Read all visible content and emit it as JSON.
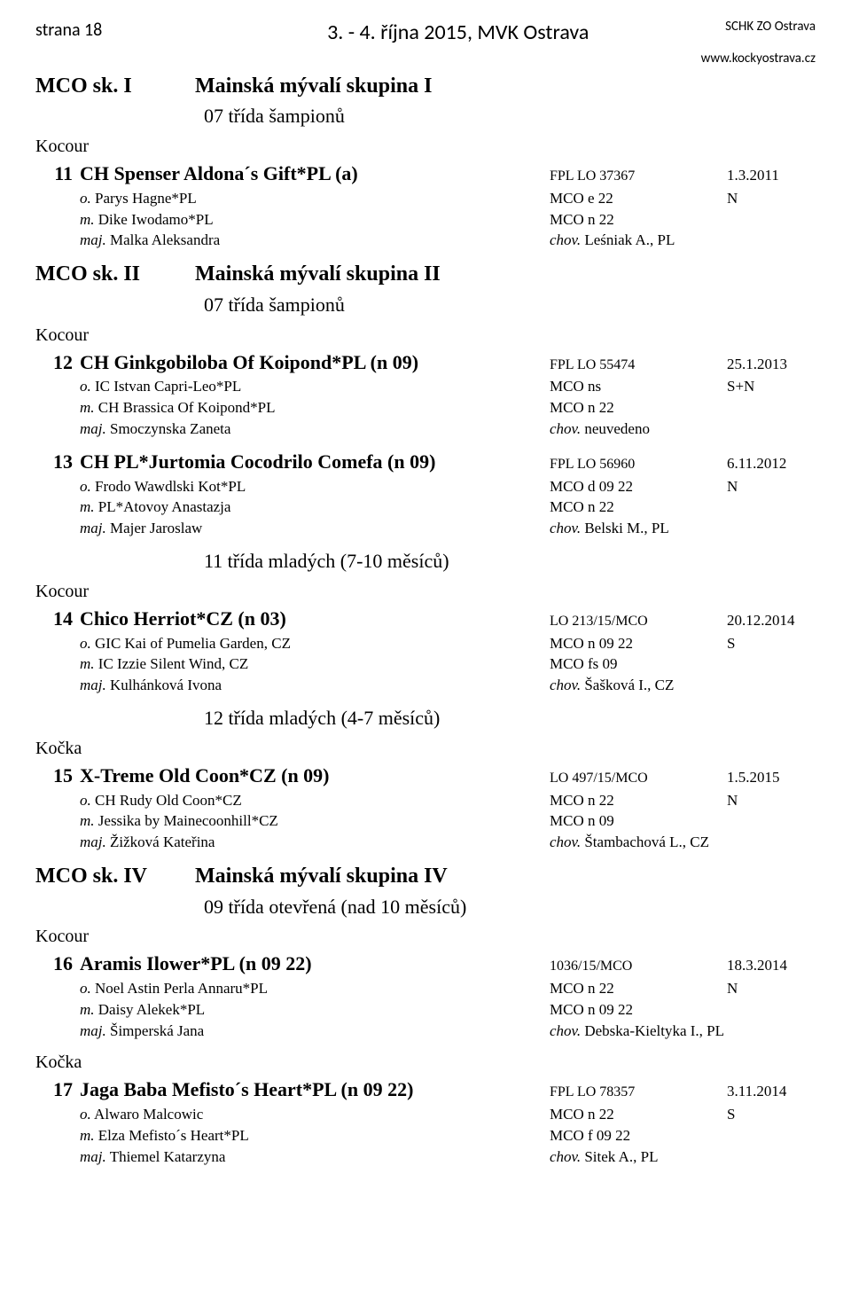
{
  "header": {
    "event_title": "3. - 4. října 2015, MVK Ostrava",
    "page_label": "strana 18",
    "org_name": "SCHK ZO Ostrava",
    "website": "www.kockyostrava.cz"
  },
  "groups": [
    {
      "code": "MCO sk. I",
      "name": "Mainská mývalí skupina I",
      "sections": [
        {
          "class_title": "07 třída šampionů",
          "sex": "Kocour",
          "entries": [
            {
              "num": "11",
              "name": "CH Spenser Aldona´s Gift*PL (a)",
              "reg": "FPL LO 37367",
              "date": "1.3.2011",
              "details": [
                {
                  "prefix": "o.",
                  "text": " Parys Hagne*PL",
                  "code": "MCO e 22",
                  "result": "N"
                },
                {
                  "prefix": "m.",
                  "text": " Dike Iwodamo*PL",
                  "code": "MCO n 22",
                  "result": ""
                },
                {
                  "prefix": "maj.",
                  "text": " Malka Aleksandra",
                  "code_prefix": "chov.",
                  "code": " Leśniak A., PL",
                  "result": ""
                }
              ]
            }
          ]
        }
      ]
    },
    {
      "code": "MCO sk. II",
      "name": "Mainská mývalí skupina II",
      "sections": [
        {
          "class_title": "07 třída šampionů",
          "sex": "Kocour",
          "entries": [
            {
              "num": "12",
              "name": "CH Ginkgobiloba Of Koipond*PL (n 09)",
              "reg": "FPL LO 55474",
              "date": "25.1.2013",
              "details": [
                {
                  "prefix": "o.",
                  "text": " IC Istvan Capri-Leo*PL",
                  "code": "MCO ns",
                  "result": "S+N"
                },
                {
                  "prefix": "m.",
                  "text": " CH Brassica Of Koipond*PL",
                  "code": "MCO n 22",
                  "result": ""
                },
                {
                  "prefix": "maj.",
                  "text": " Smoczynska Zaneta",
                  "code_prefix": "chov.",
                  "code": " neuvedeno",
                  "result": ""
                }
              ]
            },
            {
              "num": "13",
              "name": "CH PL*Jurtomia Cocodrilo Comefa (n 09)",
              "reg": "FPL LO 56960",
              "date": "6.11.2012",
              "details": [
                {
                  "prefix": "o.",
                  "text": " Frodo Wawdlski Kot*PL",
                  "code": "MCO d 09 22",
                  "result": "N"
                },
                {
                  "prefix": "m.",
                  "text": " PL*Atovoy Anastazja",
                  "code": "MCO n 22",
                  "result": ""
                },
                {
                  "prefix": "maj.",
                  "text": " Majer Jaroslaw",
                  "code_prefix": "chov.",
                  "code": " Belski M., PL",
                  "result": ""
                }
              ]
            }
          ]
        },
        {
          "class_title": "11 třída mladých (7-10 měsíců)",
          "sex": "Kocour",
          "entries": [
            {
              "num": "14",
              "name": "Chico Herriot*CZ (n 03)",
              "reg": "LO 213/15/MCO",
              "date": "20.12.2014",
              "details": [
                {
                  "prefix": "o.",
                  "text": " GIC Kai of Pumelia Garden, CZ",
                  "code": "MCO n 09 22",
                  "result": "S"
                },
                {
                  "prefix": "m.",
                  "text": " IC Izzie Silent Wind, CZ",
                  "code": "MCO fs 09",
                  "result": ""
                },
                {
                  "prefix": "maj.",
                  "text": " Kulhánková Ivona",
                  "code_prefix": "chov.",
                  "code": " Šašková I., CZ",
                  "result": ""
                }
              ]
            }
          ]
        },
        {
          "class_title": "12 třída mladých (4-7 měsíců)",
          "sex": "Kočka",
          "entries": [
            {
              "num": "15",
              "name": "X-Treme Old Coon*CZ (n 09)",
              "reg": "LO 497/15/MCO",
              "date": "1.5.2015",
              "details": [
                {
                  "prefix": "o.",
                  "text": " CH Rudy Old Coon*CZ",
                  "code": "MCO n 22",
                  "result": "N"
                },
                {
                  "prefix": "m.",
                  "text": " Jessika by Mainecoonhill*CZ",
                  "code": "MCO n 09",
                  "result": ""
                },
                {
                  "prefix": "maj.",
                  "text": " Žižková Kateřina",
                  "code_prefix": "chov.",
                  "code": " Štambachová L., CZ",
                  "result": ""
                }
              ]
            }
          ]
        }
      ]
    },
    {
      "code": "MCO sk. IV",
      "name": "Mainská mývalí skupina IV",
      "sections": [
        {
          "class_title": "09 třída otevřená (nad 10 měsíců)",
          "sex": "Kocour",
          "entries": [
            {
              "num": "16",
              "name": "Aramis Ilower*PL (n 09 22)",
              "reg": "1036/15/MCO",
              "date": "18.3.2014",
              "details": [
                {
                  "prefix": "o.",
                  "text": " Noel Astin Perla Annaru*PL",
                  "code": "MCO n 22",
                  "result": "N"
                },
                {
                  "prefix": "m.",
                  "text": " Daisy Alekek*PL",
                  "code": "MCO n 09 22",
                  "result": ""
                },
                {
                  "prefix": "maj.",
                  "text": " Šimperská Jana",
                  "code_prefix": "chov.",
                  "code": " Debska-Kieltyka I., PL",
                  "result": ""
                }
              ]
            }
          ]
        },
        {
          "class_title": "",
          "sex": "Kočka",
          "entries": [
            {
              "num": "17",
              "name": "Jaga Baba Mefisto´s Heart*PL (n 09 22)",
              "reg": "FPL LO 78357",
              "date": "3.11.2014",
              "details": [
                {
                  "prefix": "o.",
                  "text": " Alwaro Malcowic",
                  "code": "MCO n 22",
                  "result": "S"
                },
                {
                  "prefix": "m.",
                  "text": " Elza Mefisto´s Heart*PL",
                  "code": "MCO f 09 22",
                  "result": ""
                },
                {
                  "prefix": "maj.",
                  "text": " Thiemel Katarzyna",
                  "code_prefix": "chov.",
                  "code": " Sitek A., PL",
                  "result": ""
                }
              ]
            }
          ]
        }
      ]
    }
  ]
}
